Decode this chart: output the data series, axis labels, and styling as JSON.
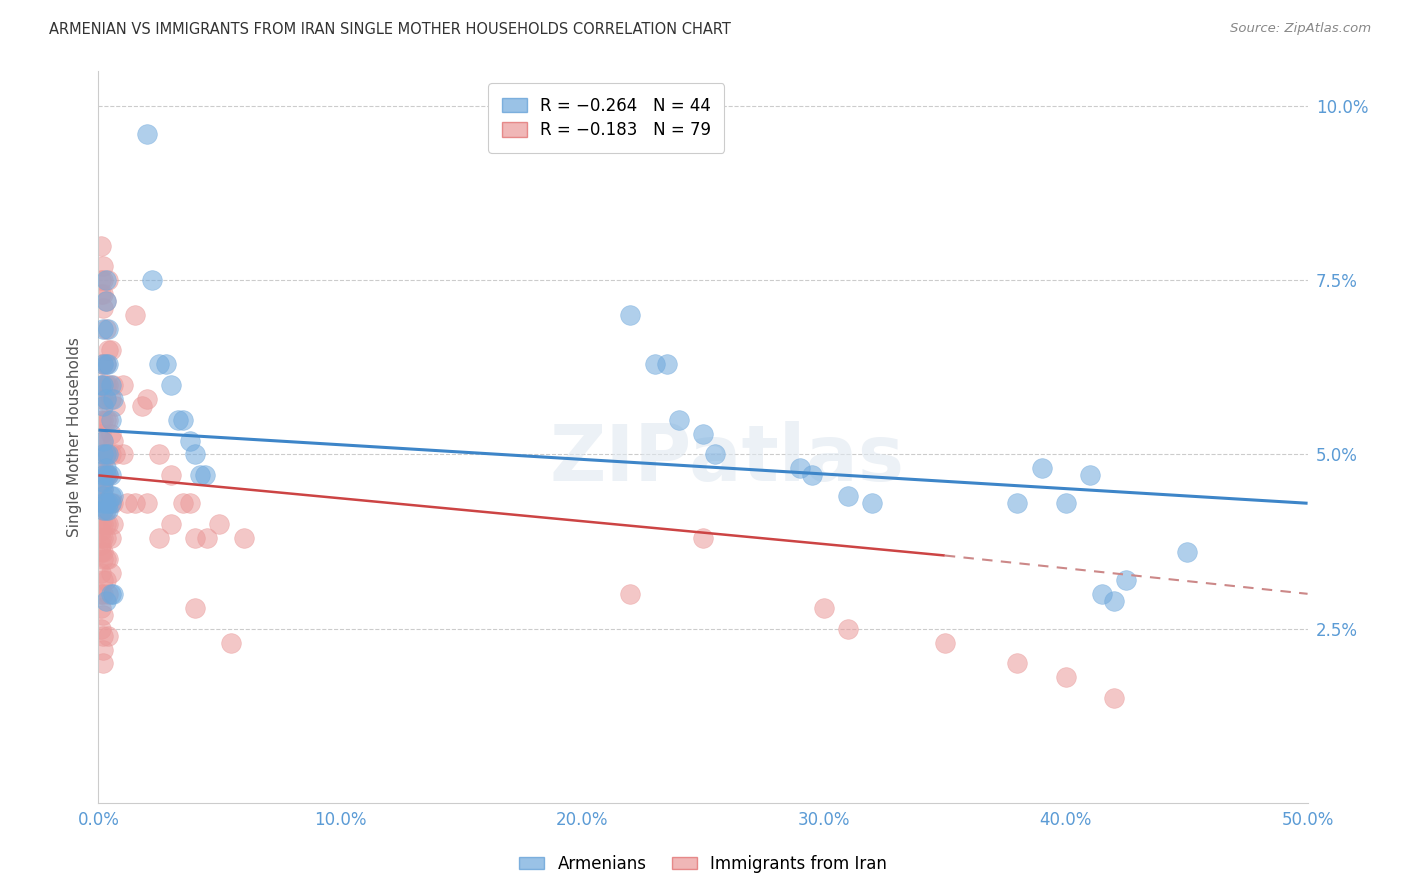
{
  "title": "ARMENIAN VS IMMIGRANTS FROM IRAN SINGLE MOTHER HOUSEHOLDS CORRELATION CHART",
  "source": "Source: ZipAtlas.com",
  "ylabel": "Single Mother Households",
  "armenian_color": "#6fa8dc",
  "iran_color": "#ea9999",
  "watermark": "ZIPatlas",
  "xlim": [
    0.0,
    0.5
  ],
  "ylim": [
    0.0,
    0.105
  ],
  "xticks": [
    0.0,
    0.1,
    0.2,
    0.3,
    0.4,
    0.5
  ],
  "yticks": [
    0.025,
    0.05,
    0.075,
    0.1
  ],
  "blue_line": [
    [
      0.0,
      0.0535
    ],
    [
      0.5,
      0.043
    ]
  ],
  "pink_line_solid": [
    [
      0.0,
      0.047
    ],
    [
      0.35,
      0.0355
    ]
  ],
  "pink_line_dashed": [
    [
      0.35,
      0.0355
    ],
    [
      0.5,
      0.03
    ]
  ],
  "armenian_points": [
    [
      0.001,
      0.06
    ],
    [
      0.002,
      0.068
    ],
    [
      0.002,
      0.063
    ],
    [
      0.002,
      0.06
    ],
    [
      0.002,
      0.057
    ],
    [
      0.002,
      0.052
    ],
    [
      0.002,
      0.05
    ],
    [
      0.002,
      0.047
    ],
    [
      0.002,
      0.046
    ],
    [
      0.002,
      0.045
    ],
    [
      0.002,
      0.044
    ],
    [
      0.002,
      0.043
    ],
    [
      0.002,
      0.042
    ],
    [
      0.003,
      0.075
    ],
    [
      0.003,
      0.072
    ],
    [
      0.003,
      0.063
    ],
    [
      0.003,
      0.058
    ],
    [
      0.003,
      0.05
    ],
    [
      0.003,
      0.048
    ],
    [
      0.003,
      0.047
    ],
    [
      0.003,
      0.043
    ],
    [
      0.003,
      0.042
    ],
    [
      0.003,
      0.029
    ],
    [
      0.004,
      0.068
    ],
    [
      0.004,
      0.063
    ],
    [
      0.004,
      0.05
    ],
    [
      0.004,
      0.047
    ],
    [
      0.004,
      0.043
    ],
    [
      0.004,
      0.042
    ],
    [
      0.005,
      0.06
    ],
    [
      0.005,
      0.055
    ],
    [
      0.005,
      0.047
    ],
    [
      0.005,
      0.044
    ],
    [
      0.005,
      0.043
    ],
    [
      0.005,
      0.03
    ],
    [
      0.006,
      0.058
    ],
    [
      0.006,
      0.044
    ],
    [
      0.006,
      0.03
    ],
    [
      0.02,
      0.096
    ],
    [
      0.022,
      0.075
    ],
    [
      0.025,
      0.063
    ],
    [
      0.028,
      0.063
    ],
    [
      0.03,
      0.06
    ],
    [
      0.033,
      0.055
    ],
    [
      0.035,
      0.055
    ],
    [
      0.038,
      0.052
    ],
    [
      0.04,
      0.05
    ],
    [
      0.042,
      0.047
    ],
    [
      0.044,
      0.047
    ],
    [
      0.22,
      0.07
    ],
    [
      0.23,
      0.063
    ],
    [
      0.235,
      0.063
    ],
    [
      0.24,
      0.055
    ],
    [
      0.25,
      0.053
    ],
    [
      0.255,
      0.05
    ],
    [
      0.29,
      0.048
    ],
    [
      0.295,
      0.047
    ],
    [
      0.31,
      0.044
    ],
    [
      0.32,
      0.043
    ],
    [
      0.38,
      0.043
    ],
    [
      0.39,
      0.048
    ],
    [
      0.4,
      0.043
    ],
    [
      0.41,
      0.047
    ],
    [
      0.415,
      0.03
    ],
    [
      0.42,
      0.029
    ],
    [
      0.425,
      0.032
    ],
    [
      0.45,
      0.036
    ]
  ],
  "iran_points": [
    [
      0.001,
      0.08
    ],
    [
      0.001,
      0.075
    ],
    [
      0.001,
      0.073
    ],
    [
      0.001,
      0.063
    ],
    [
      0.001,
      0.06
    ],
    [
      0.001,
      0.058
    ],
    [
      0.001,
      0.055
    ],
    [
      0.001,
      0.053
    ],
    [
      0.001,
      0.052
    ],
    [
      0.001,
      0.05
    ],
    [
      0.001,
      0.048
    ],
    [
      0.001,
      0.047
    ],
    [
      0.001,
      0.046
    ],
    [
      0.001,
      0.045
    ],
    [
      0.001,
      0.044
    ],
    [
      0.001,
      0.043
    ],
    [
      0.001,
      0.042
    ],
    [
      0.001,
      0.04
    ],
    [
      0.001,
      0.039
    ],
    [
      0.001,
      0.038
    ],
    [
      0.001,
      0.037
    ],
    [
      0.001,
      0.036
    ],
    [
      0.001,
      0.033
    ],
    [
      0.001,
      0.03
    ],
    [
      0.001,
      0.028
    ],
    [
      0.001,
      0.025
    ],
    [
      0.002,
      0.077
    ],
    [
      0.002,
      0.075
    ],
    [
      0.002,
      0.073
    ],
    [
      0.002,
      0.071
    ],
    [
      0.002,
      0.063
    ],
    [
      0.002,
      0.06
    ],
    [
      0.002,
      0.058
    ],
    [
      0.002,
      0.055
    ],
    [
      0.002,
      0.052
    ],
    [
      0.002,
      0.05
    ],
    [
      0.002,
      0.048
    ],
    [
      0.002,
      0.047
    ],
    [
      0.002,
      0.046
    ],
    [
      0.002,
      0.045
    ],
    [
      0.002,
      0.044
    ],
    [
      0.002,
      0.043
    ],
    [
      0.002,
      0.042
    ],
    [
      0.002,
      0.04
    ],
    [
      0.002,
      0.038
    ],
    [
      0.002,
      0.036
    ],
    [
      0.002,
      0.035
    ],
    [
      0.002,
      0.032
    ],
    [
      0.002,
      0.03
    ],
    [
      0.002,
      0.027
    ],
    [
      0.002,
      0.024
    ],
    [
      0.002,
      0.022
    ],
    [
      0.002,
      0.02
    ],
    [
      0.003,
      0.072
    ],
    [
      0.003,
      0.068
    ],
    [
      0.003,
      0.063
    ],
    [
      0.003,
      0.06
    ],
    [
      0.003,
      0.058
    ],
    [
      0.003,
      0.055
    ],
    [
      0.003,
      0.05
    ],
    [
      0.003,
      0.047
    ],
    [
      0.003,
      0.043
    ],
    [
      0.003,
      0.04
    ],
    [
      0.003,
      0.038
    ],
    [
      0.003,
      0.035
    ],
    [
      0.003,
      0.032
    ],
    [
      0.004,
      0.075
    ],
    [
      0.004,
      0.065
    ],
    [
      0.004,
      0.06
    ],
    [
      0.004,
      0.055
    ],
    [
      0.004,
      0.05
    ],
    [
      0.004,
      0.047
    ],
    [
      0.004,
      0.043
    ],
    [
      0.004,
      0.04
    ],
    [
      0.004,
      0.035
    ],
    [
      0.004,
      0.03
    ],
    [
      0.004,
      0.024
    ],
    [
      0.005,
      0.065
    ],
    [
      0.005,
      0.058
    ],
    [
      0.005,
      0.053
    ],
    [
      0.005,
      0.05
    ],
    [
      0.005,
      0.043
    ],
    [
      0.005,
      0.038
    ],
    [
      0.005,
      0.033
    ],
    [
      0.006,
      0.06
    ],
    [
      0.006,
      0.052
    ],
    [
      0.006,
      0.043
    ],
    [
      0.006,
      0.04
    ],
    [
      0.007,
      0.057
    ],
    [
      0.007,
      0.05
    ],
    [
      0.01,
      0.06
    ],
    [
      0.01,
      0.05
    ],
    [
      0.012,
      0.043
    ],
    [
      0.015,
      0.07
    ],
    [
      0.015,
      0.043
    ],
    [
      0.018,
      0.057
    ],
    [
      0.02,
      0.058
    ],
    [
      0.02,
      0.043
    ],
    [
      0.025,
      0.05
    ],
    [
      0.025,
      0.038
    ],
    [
      0.03,
      0.047
    ],
    [
      0.03,
      0.04
    ],
    [
      0.035,
      0.043
    ],
    [
      0.038,
      0.043
    ],
    [
      0.04,
      0.038
    ],
    [
      0.04,
      0.028
    ],
    [
      0.045,
      0.038
    ],
    [
      0.05,
      0.04
    ],
    [
      0.055,
      0.023
    ],
    [
      0.06,
      0.038
    ],
    [
      0.22,
      0.03
    ],
    [
      0.25,
      0.038
    ],
    [
      0.3,
      0.028
    ],
    [
      0.31,
      0.025
    ],
    [
      0.35,
      0.023
    ],
    [
      0.38,
      0.02
    ],
    [
      0.4,
      0.018
    ],
    [
      0.42,
      0.015
    ]
  ]
}
